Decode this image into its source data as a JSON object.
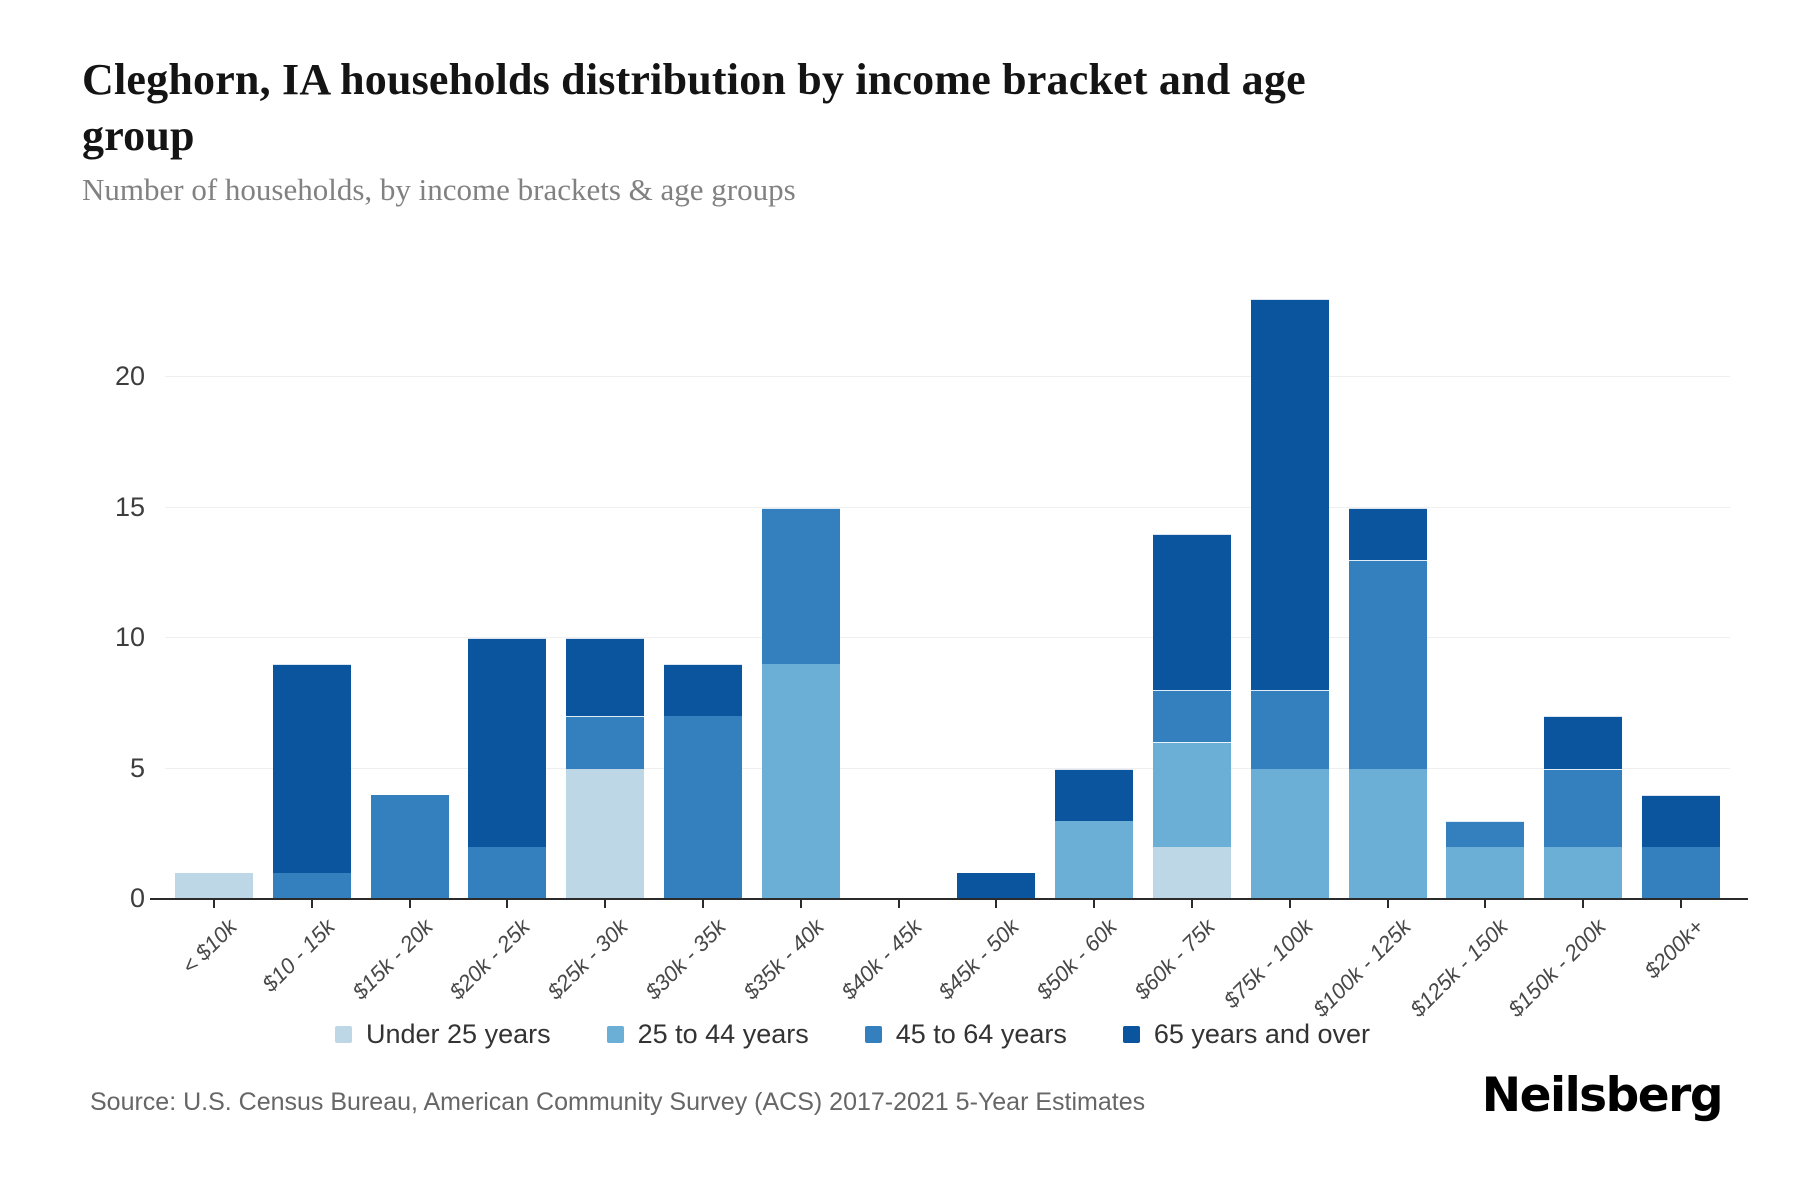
{
  "title": "Cleghorn, IA households distribution by income bracket and age group",
  "subtitle": "Number of households, by income brackets & age groups",
  "source": "Source: U.S. Census Bureau, American Community Survey (ACS) 2017-2021 5-Year Estimates",
  "logo": "Neilsberg",
  "colors": {
    "axis": "#2b2b2b",
    "gridline": "#efefef",
    "under25": "#bdd7e7",
    "age25to44": "#6baed6",
    "age45to64": "#3480bf",
    "age65plus": "#0b559f"
  },
  "chart_data": {
    "type": "bar",
    "stacked": true,
    "title": "Cleghorn, IA households distribution by income bracket and age group",
    "xlabel": "",
    "ylabel": "Number of households",
    "grid": true,
    "legend_position": "bottom",
    "ylim": [
      0,
      23
    ],
    "yticks": [
      0,
      5,
      10,
      15,
      20
    ],
    "categories": [
      "< $10k",
      "$10 - 15k",
      "$15k - 20k",
      "$20k - 25k",
      "$25k - 30k",
      "$30k - 35k",
      "$35k - 40k",
      "$40k - 45k",
      "$45k - 50k",
      "$50k - 60k",
      "$60k - 75k",
      "$75k - 100k",
      "$100k - 125k",
      "$125k - 150k",
      "$150k - 200k",
      "$200k+"
    ],
    "series": [
      {
        "name": "Under 25 years",
        "color": "#bdd7e7",
        "values": [
          1,
          0,
          0,
          0,
          5,
          0,
          0,
          0,
          0,
          0,
          2,
          0,
          0,
          0,
          0,
          0
        ]
      },
      {
        "name": "25 to 44 years",
        "color": "#6baed6",
        "values": [
          0,
          0,
          0,
          0,
          0,
          0,
          9,
          0,
          0,
          3,
          4,
          5,
          5,
          2,
          2,
          0
        ]
      },
      {
        "name": "45 to 64 years",
        "color": "#3480bf",
        "values": [
          0,
          1,
          4,
          2,
          2,
          7,
          6,
          0,
          0,
          0,
          2,
          3,
          8,
          1,
          3,
          2
        ]
      },
      {
        "name": "65 years and over",
        "color": "#0b559f",
        "values": [
          0,
          8,
          0,
          8,
          3,
          2,
          0,
          0,
          1,
          2,
          6,
          15,
          2,
          0,
          2,
          2
        ]
      }
    ],
    "totals": [
      1,
      9,
      4,
      10,
      10,
      9,
      15,
      0,
      1,
      5,
      14,
      23,
      15,
      3,
      7,
      4
    ]
  }
}
